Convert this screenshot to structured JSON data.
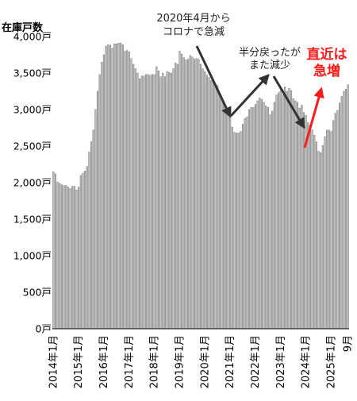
{
  "chart_data": {
    "type": "bar",
    "ylabel": "在庫戸数",
    "ylim": [
      0,
      4000
    ],
    "yticks": [
      0,
      500,
      1000,
      1500,
      2000,
      2500,
      3000,
      3500,
      4000
    ],
    "ytick_labels": [
      "0戸",
      "500戸",
      "1,000戸",
      "1,500戸",
      "2,000戸",
      "2,500戸",
      "3,000戸",
      "3,500戸",
      "4,000戸"
    ],
    "x_start": "2014-01",
    "x_end": "2025-09",
    "xtick_labels": [
      "2014年1月",
      "2015年1月",
      "2016年1月",
      "2017年1月",
      "2018年1月",
      "2019年1月",
      "2020年1月",
      "2021年1月",
      "2022年1月",
      "2023年1月",
      "2024年1月",
      "2025年1月",
      "9月"
    ],
    "x": [
      "2014-01",
      "2014-02",
      "2014-03",
      "2014-04",
      "2014-05",
      "2014-06",
      "2014-07",
      "2014-08",
      "2014-09",
      "2014-10",
      "2014-11",
      "2014-12",
      "2015-01",
      "2015-02",
      "2015-03",
      "2015-04",
      "2015-05",
      "2015-06",
      "2015-07",
      "2015-08",
      "2015-09",
      "2015-10",
      "2015-11",
      "2015-12",
      "2016-01",
      "2016-02",
      "2016-03",
      "2016-04",
      "2016-05",
      "2016-06",
      "2016-07",
      "2016-08",
      "2016-09",
      "2016-10",
      "2016-11",
      "2016-12",
      "2017-01",
      "2017-02",
      "2017-03",
      "2017-04",
      "2017-05",
      "2017-06",
      "2017-07",
      "2017-08",
      "2017-09",
      "2017-10",
      "2017-11",
      "2017-12",
      "2018-01",
      "2018-02",
      "2018-03",
      "2018-04",
      "2018-05",
      "2018-06",
      "2018-07",
      "2018-08",
      "2018-09",
      "2018-10",
      "2018-11",
      "2018-12",
      "2019-01",
      "2019-02",
      "2019-03",
      "2019-04",
      "2019-05",
      "2019-06",
      "2019-07",
      "2019-08",
      "2019-09",
      "2019-10",
      "2019-11",
      "2019-12",
      "2020-01",
      "2020-02",
      "2020-03",
      "2020-04",
      "2020-05",
      "2020-06",
      "2020-07",
      "2020-08",
      "2020-09",
      "2020-10",
      "2020-11",
      "2020-12",
      "2021-01",
      "2021-02",
      "2021-03",
      "2021-04",
      "2021-05",
      "2021-06",
      "2021-07",
      "2021-08",
      "2021-09",
      "2021-10",
      "2021-11",
      "2021-12",
      "2022-01",
      "2022-02",
      "2022-03",
      "2022-04",
      "2022-05",
      "2022-06",
      "2022-07",
      "2022-08",
      "2022-09",
      "2022-10",
      "2022-11",
      "2022-12",
      "2023-01",
      "2023-02",
      "2023-03",
      "2023-04",
      "2023-05",
      "2023-06",
      "2023-07",
      "2023-08",
      "2023-09",
      "2023-10",
      "2023-11",
      "2023-12",
      "2024-01",
      "2024-02",
      "2024-03",
      "2024-04",
      "2024-05",
      "2024-06",
      "2024-07",
      "2024-08",
      "2024-09",
      "2024-10",
      "2024-11",
      "2024-12",
      "2025-01",
      "2025-02",
      "2025-03",
      "2025-04",
      "2025-05",
      "2025-06",
      "2025-07",
      "2025-08",
      "2025-09"
    ],
    "values": [
      2150,
      2120,
      2010,
      1990,
      1970,
      1960,
      1960,
      1940,
      1920,
      1950,
      1950,
      1900,
      1940,
      2100,
      2130,
      2160,
      2220,
      2420,
      2560,
      2720,
      3000,
      3250,
      3480,
      3650,
      3750,
      3870,
      3890,
      3880,
      3840,
      3900,
      3900,
      3910,
      3910,
      3890,
      3800,
      3810,
      3790,
      3700,
      3620,
      3560,
      3500,
      3420,
      3460,
      3460,
      3480,
      3480,
      3470,
      3480,
      3480,
      3590,
      3530,
      3450,
      3500,
      3450,
      3520,
      3510,
      3500,
      3560,
      3640,
      3620,
      3800,
      3760,
      3710,
      3680,
      3690,
      3740,
      3720,
      3690,
      3700,
      3690,
      3620,
      3560,
      3520,
      3470,
      3440,
      3400,
      3370,
      3350,
      3330,
      3220,
      3150,
      3100,
      3000,
      2950,
      2900,
      2760,
      2690,
      2680,
      2680,
      2700,
      2800,
      2880,
      2900,
      3000,
      3030,
      3030,
      3070,
      3120,
      3160,
      3140,
      3100,
      3050,
      3030,
      2930,
      2980,
      3100,
      3200,
      3230,
      3260,
      3200,
      3310,
      3250,
      3290,
      3260,
      3150,
      3120,
      3100,
      3020,
      3060,
      2960,
      2920,
      2820,
      2790,
      2720,
      2650,
      2560,
      2430,
      2410,
      2510,
      2630,
      2720,
      2720,
      2700,
      2850,
      2950,
      2990,
      3090,
      3180,
      3250,
      3280,
      3340
    ]
  },
  "annotations": {
    "covid_drop": [
      "2020年4月から",
      "コロナで急減"
    ],
    "half_recovery": [
      "半分戻ったが",
      "また減少"
    ],
    "recent_rise": [
      "直近は",
      "急増"
    ]
  },
  "colors": {
    "bar": "#c0c0c0",
    "bar_edge": "#6a6a6a",
    "arrow": "#333333",
    "accent": "#ff1a1a"
  }
}
